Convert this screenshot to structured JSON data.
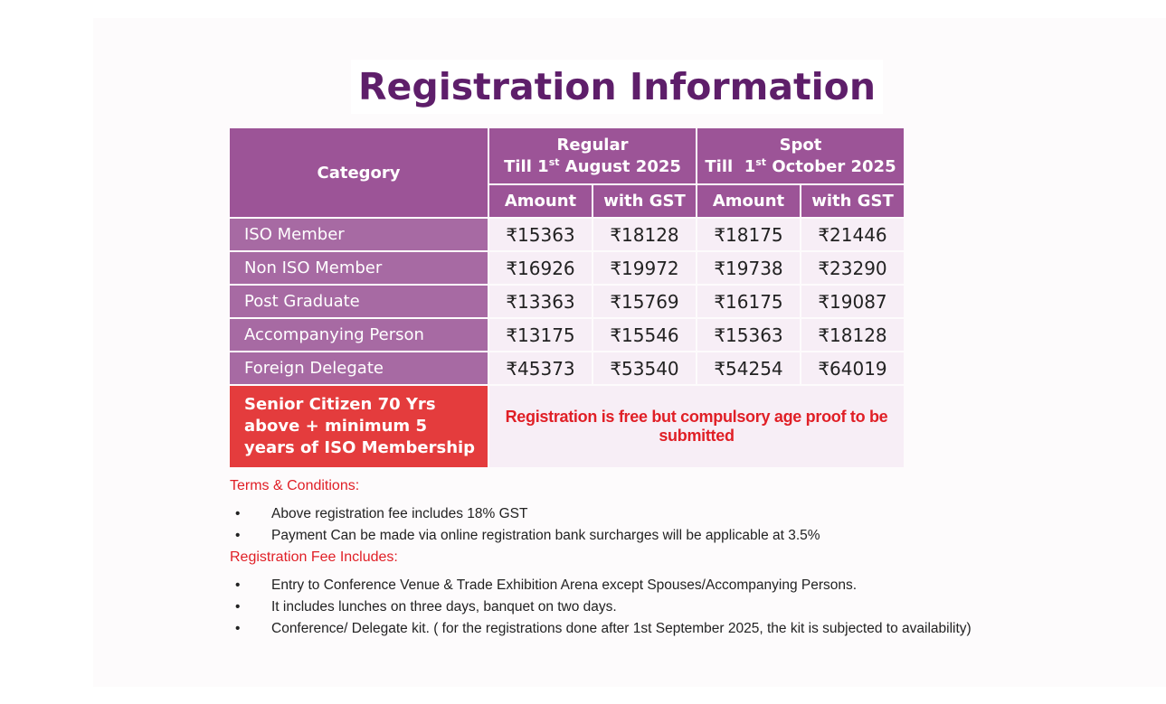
{
  "title": "Registration Information",
  "table": {
    "category_header": "Category",
    "regular": {
      "label": "Regular",
      "till_prefix": "Till 1",
      "till_sup": "st",
      "till_suffix": " August 2025"
    },
    "spot": {
      "label": "Spot",
      "till_prefix": "Till  1",
      "till_sup": "st",
      "till_suffix": " October 2025"
    },
    "sub_headers": [
      "Amount",
      "with GST",
      "Amount",
      "with GST"
    ],
    "rows": [
      {
        "label": "ISO Member",
        "values": [
          "₹15363",
          "₹18128",
          "₹18175",
          "₹21446"
        ]
      },
      {
        "label": "Non ISO Member",
        "values": [
          "₹16926",
          "₹19972",
          "₹19738",
          "₹23290"
        ]
      },
      {
        "label": "Post Graduate",
        "values": [
          "₹13363",
          "₹15769",
          "₹16175",
          "₹19087"
        ]
      },
      {
        "label": "Accompanying Person",
        "values": [
          "₹13175",
          "₹15546",
          "₹15363",
          "₹18128"
        ]
      },
      {
        "label": "Foreign Delegate",
        "values": [
          "₹45373",
          "₹53540",
          "₹54254",
          "₹64019"
        ]
      }
    ],
    "senior_label": "Senior Citizen 70 Yrs above + minimum 5 years of ISO Membership",
    "senior_note": "Registration is free but compulsory age proof to be submitted"
  },
  "terms": {
    "heading": "Terms & Conditions:",
    "items": [
      "Above registration fee includes 18% GST",
      "Payment Can be made via online registration bank surcharges will be applicable at  3.5%"
    ]
  },
  "fee_includes": {
    "heading": "Registration Fee Includes:",
    "items": [
      "Entry to Conference Venue & Trade Exhibition Arena except Spouses/Accompanying Persons.",
      "It includes lunches on three days, banquet on two days.",
      "Conference/ Delegate kit. ( for the registrations done after 1st September 2025, the kit is subjected to availability)"
    ]
  },
  "bullet_glyph": "•",
  "colors": {
    "title": "#5e1e6a",
    "header": "#9c5497",
    "row_label": "#a76aa3",
    "cell": "#f7eef6",
    "senior": "#e43c3d",
    "accent_red": "#e01f26"
  }
}
